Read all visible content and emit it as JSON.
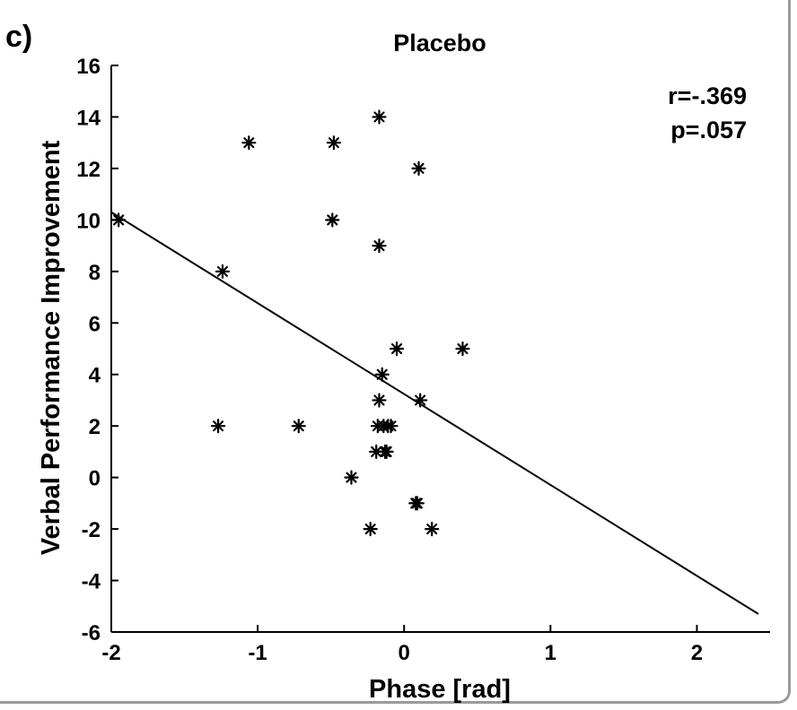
{
  "panel_label": "c)",
  "stats": {
    "r": "r=-.369",
    "p": "p=.057"
  },
  "chart_data": {
    "type": "scatter",
    "title": "Placebo",
    "xlabel": "Phase [rad]",
    "ylabel": "Verbal Performance Improvement",
    "xlim": [
      -2,
      2.5
    ],
    "ylim": [
      -6,
      16
    ],
    "xticks": [
      -2,
      -1,
      0,
      1,
      2
    ],
    "yticks": [
      -6,
      -4,
      -2,
      0,
      2,
      4,
      6,
      8,
      10,
      12,
      14,
      16
    ],
    "grid": false,
    "marker": "asterisk",
    "points": [
      {
        "x": -1.95,
        "y": 10
      },
      {
        "x": -1.24,
        "y": 8
      },
      {
        "x": -1.06,
        "y": 13
      },
      {
        "x": -1.27,
        "y": 2
      },
      {
        "x": -0.72,
        "y": 2
      },
      {
        "x": -0.48,
        "y": 13
      },
      {
        "x": -0.49,
        "y": 10
      },
      {
        "x": -0.17,
        "y": 14
      },
      {
        "x": -0.17,
        "y": 9
      },
      {
        "x": 0.1,
        "y": 12
      },
      {
        "x": -0.05,
        "y": 5
      },
      {
        "x": 0.4,
        "y": 5
      },
      {
        "x": -0.15,
        "y": 4
      },
      {
        "x": -0.17,
        "y": 3
      },
      {
        "x": 0.11,
        "y": 3
      },
      {
        "x": -0.18,
        "y": 2
      },
      {
        "x": -0.14,
        "y": 2
      },
      {
        "x": -0.11,
        "y": 2
      },
      {
        "x": -0.09,
        "y": 2
      },
      {
        "x": -0.19,
        "y": 1
      },
      {
        "x": -0.13,
        "y": 1
      },
      {
        "x": -0.12,
        "y": 1
      },
      {
        "x": -0.36,
        "y": 0
      },
      {
        "x": 0.08,
        "y": -1
      },
      {
        "x": 0.09,
        "y": -1
      },
      {
        "x": -0.23,
        "y": -2
      },
      {
        "x": 0.19,
        "y": -2
      }
    ],
    "fit_line": {
      "x": [
        -2,
        2.42
      ],
      "y": [
        10.3,
        -5.3
      ]
    }
  }
}
